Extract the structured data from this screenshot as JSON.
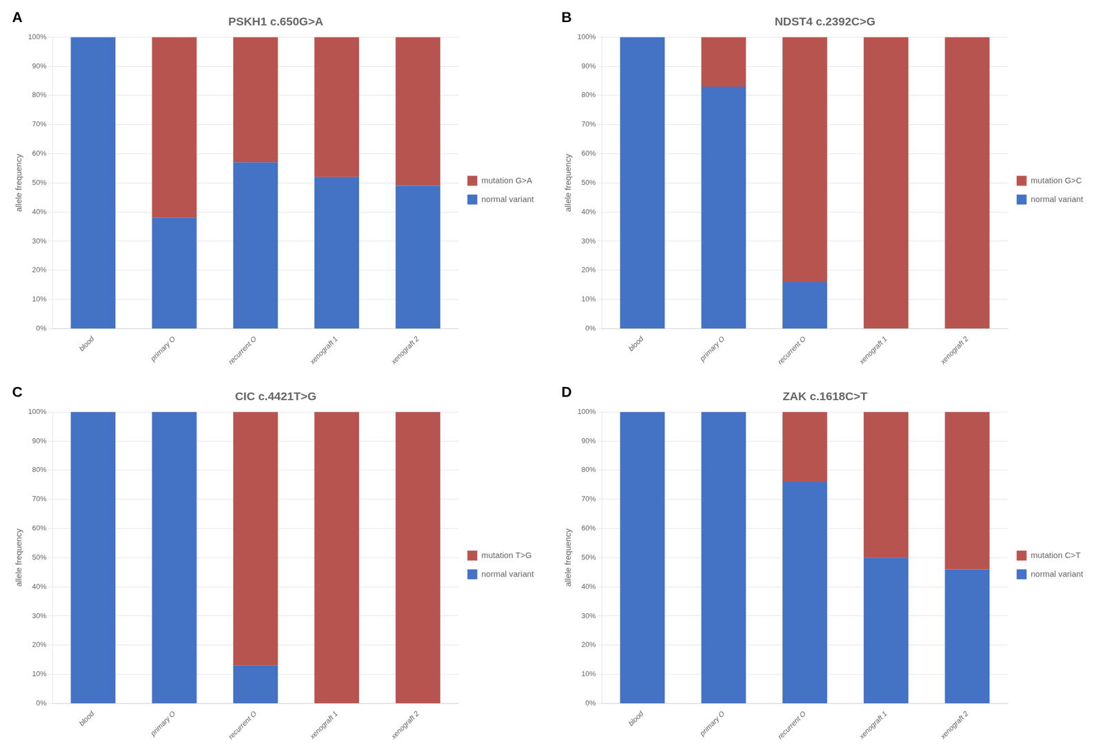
{
  "chart_data": [
    {
      "type": "bar",
      "title": "PSKH1 c.650G>A",
      "annotations": [
        "A"
      ],
      "categories": [
        "blood",
        "primary O",
        "recurrent O",
        "xenograft 1",
        "xenograft 2"
      ],
      "series": [
        {
          "name": "normal variant",
          "color": "#4472C4",
          "values": [
            100,
            38,
            57,
            52,
            49
          ]
        },
        {
          "name": "mutation G>A",
          "color": "#B85450",
          "values": [
            0,
            62,
            43,
            48,
            51
          ]
        }
      ],
      "y_label": "allele frequency",
      "stacked": true,
      "grid": "y",
      "legend": "right",
      "ylim": [
        0,
        100
      ],
      "yticks": [
        {
          "value": 0,
          "label": "0%"
        },
        {
          "value": 10,
          "label": "10%"
        },
        {
          "value": 20,
          "label": "20%"
        },
        {
          "value": 30,
          "label": "30%"
        },
        {
          "value": 40,
          "label": "40%"
        },
        {
          "value": 50,
          "label": "50%"
        },
        {
          "value": 60,
          "label": "60%"
        },
        {
          "value": 70,
          "label": "70%"
        },
        {
          "value": 80,
          "label": "80%"
        },
        {
          "value": 90,
          "label": "90%"
        },
        {
          "value": 100,
          "label": "100%"
        }
      ]
    },
    {
      "type": "bar",
      "title": "NDST4 c.2392C>G",
      "annotations": [
        "B"
      ],
      "categories": [
        "blood",
        "primary O",
        "recurrent O",
        "xenograft 1",
        "xenograft 2"
      ],
      "series": [
        {
          "name": "normal variant",
          "color": "#4472C4",
          "values": [
            100,
            83,
            16,
            0,
            0
          ]
        },
        {
          "name": "mutation G>C",
          "color": "#B85450",
          "values": [
            0,
            17,
            84,
            100,
            100
          ]
        }
      ],
      "y_label": "allele frequency",
      "stacked": true,
      "grid": "y",
      "legend": "right",
      "ylim": [
        0,
        100
      ],
      "yticks": [
        {
          "value": 0,
          "label": "0%"
        },
        {
          "value": 10,
          "label": "10%"
        },
        {
          "value": 20,
          "label": "20%"
        },
        {
          "value": 30,
          "label": "30%"
        },
        {
          "value": 40,
          "label": "40%"
        },
        {
          "value": 50,
          "label": "50%"
        },
        {
          "value": 60,
          "label": "60%"
        },
        {
          "value": 70,
          "label": "70%"
        },
        {
          "value": 80,
          "label": "80%"
        },
        {
          "value": 90,
          "label": "90%"
        },
        {
          "value": 100,
          "label": "100%"
        }
      ]
    },
    {
      "type": "bar",
      "title": "CIC c.4421T>G",
      "annotations": [
        "C"
      ],
      "categories": [
        "blood",
        "primary O",
        "recurrent O",
        "xenograft 1",
        "xenograft 2"
      ],
      "series": [
        {
          "name": "normal variant",
          "color": "#4472C4",
          "values": [
            100,
            100,
            13,
            0,
            0
          ]
        },
        {
          "name": "mutation T>G",
          "color": "#B85450",
          "values": [
            0,
            0,
            87,
            100,
            100
          ]
        }
      ],
      "y_label": "allele frequency",
      "stacked": true,
      "grid": "y",
      "legend": "right",
      "ylim": [
        0,
        100
      ],
      "yticks": [
        {
          "value": 0,
          "label": "0%"
        },
        {
          "value": 10,
          "label": "10%"
        },
        {
          "value": 20,
          "label": "20%"
        },
        {
          "value": 30,
          "label": "30%"
        },
        {
          "value": 40,
          "label": "40%"
        },
        {
          "value": 50,
          "label": "50%"
        },
        {
          "value": 60,
          "label": "60%"
        },
        {
          "value": 70,
          "label": "70%"
        },
        {
          "value": 80,
          "label": "80%"
        },
        {
          "value": 90,
          "label": "90%"
        },
        {
          "value": 100,
          "label": "100%"
        }
      ]
    },
    {
      "type": "bar",
      "title": "ZAK c.1618C>T",
      "annotations": [
        "D"
      ],
      "categories": [
        "blood",
        "primary O",
        "recurrent O",
        "xenograft 1",
        "xenograft 2"
      ],
      "series": [
        {
          "name": "normal variant",
          "color": "#4472C4",
          "values": [
            100,
            100,
            76,
            50,
            46
          ]
        },
        {
          "name": "mutation C>T",
          "color": "#B85450",
          "values": [
            0,
            0,
            24,
            50,
            54
          ]
        }
      ],
      "y_label": "allele frequency",
      "stacked": true,
      "grid": "y",
      "legend": "right",
      "ylim": [
        0,
        100
      ],
      "yticks": [
        {
          "value": 0,
          "label": "0%"
        },
        {
          "value": 10,
          "label": "10%"
        },
        {
          "value": 20,
          "label": "20%"
        },
        {
          "value": 30,
          "label": "30%"
        },
        {
          "value": 40,
          "label": "40%"
        },
        {
          "value": 50,
          "label": "50%"
        },
        {
          "value": 60,
          "label": "60%"
        },
        {
          "value": 70,
          "label": "70%"
        },
        {
          "value": 80,
          "label": "80%"
        },
        {
          "value": 90,
          "label": "90%"
        },
        {
          "value": 100,
          "label": "100%"
        }
      ]
    }
  ]
}
